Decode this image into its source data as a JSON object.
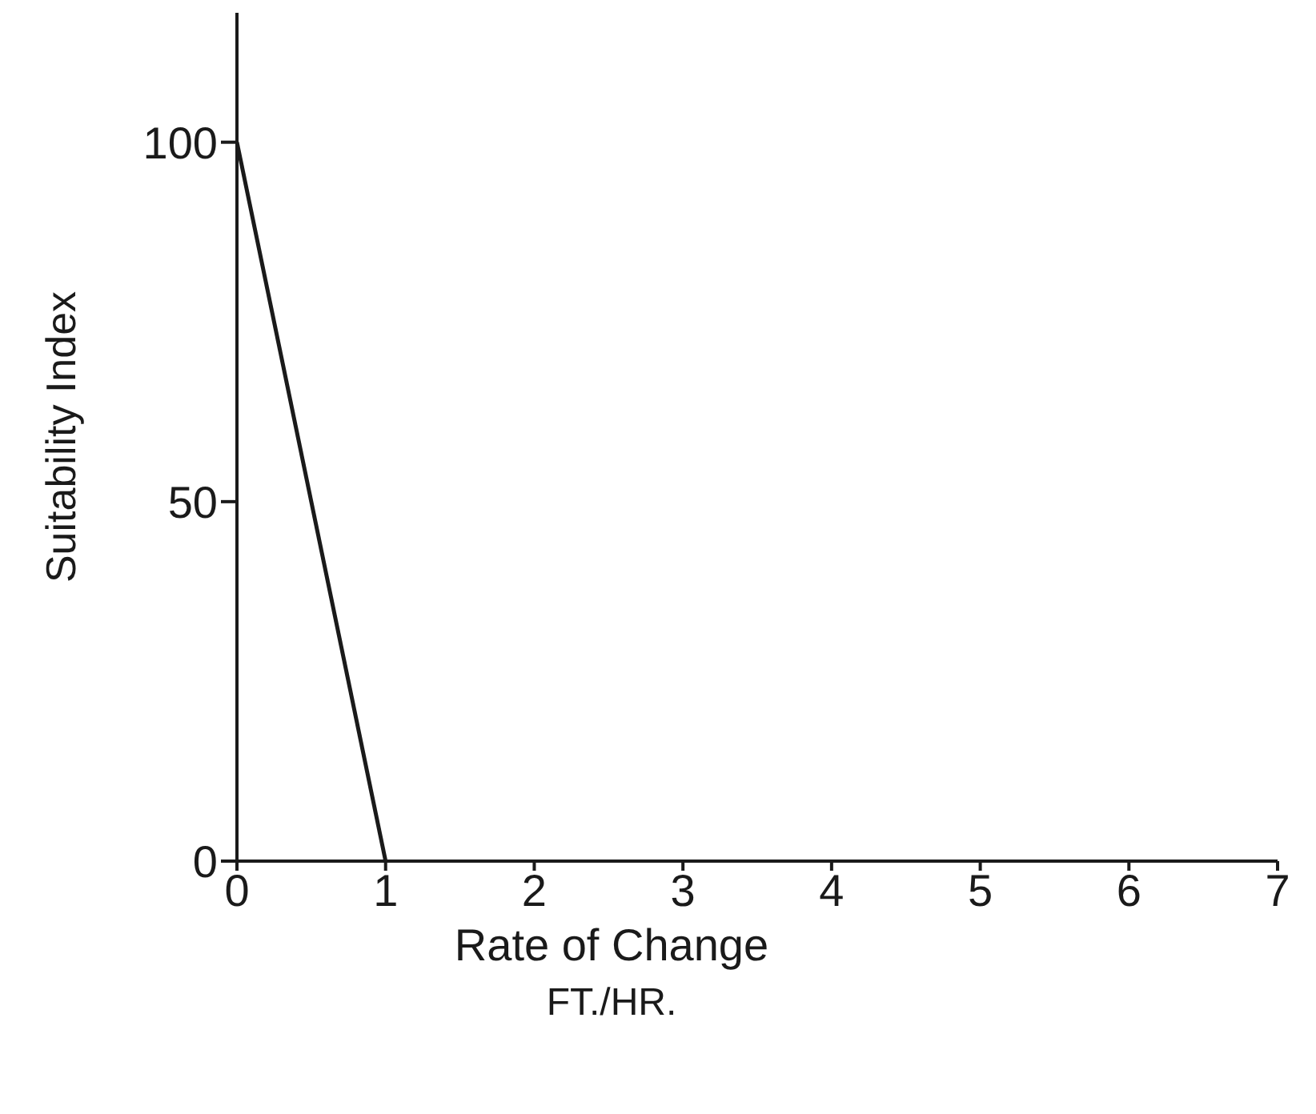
{
  "chart_data": {
    "type": "line",
    "xlabel": "Rate of Change\nFT./HR.",
    "ylabel": "Suitability Index",
    "x": [
      0,
      1
    ],
    "series": [
      {
        "color": "#1a1a1a",
        "values": [
          100,
          0
        ]
      }
    ],
    "xlim": [
      0,
      7
    ],
    "xticks": [
      0,
      1,
      2,
      3,
      4,
      5,
      6,
      7
    ],
    "ylim": [
      0,
      118
    ],
    "yticks": [
      0,
      50,
      100
    ],
    "marker": "none",
    "line_style": "solid"
  }
}
